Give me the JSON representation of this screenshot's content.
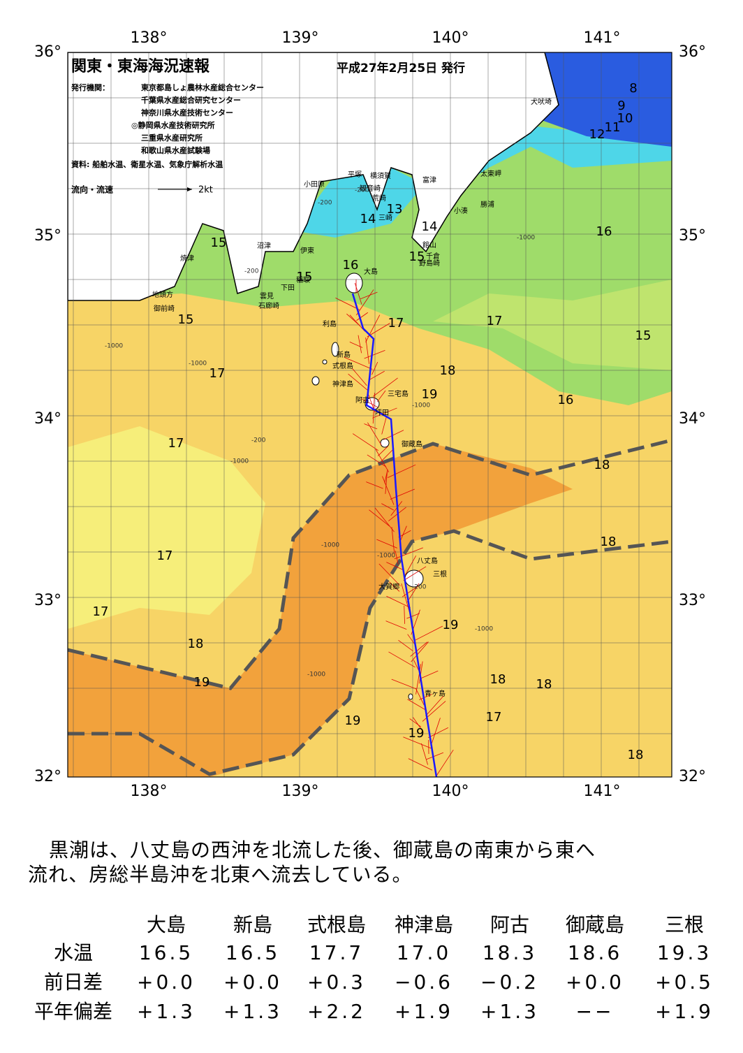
{
  "map": {
    "title": "関東・東海海況速報",
    "issue_date": "平成27年2月25日 発行",
    "issuer_label": "発行機関：",
    "issuers": [
      "東京都島しょ農林水産総合センター",
      "千葉県水産総合研究センター",
      "神奈川県水産技術センター",
      "◎静岡県水産技術研究所",
      "三重県水産研究所",
      "和歌山県水産試験場"
    ],
    "source": "資料: 船舶水温、衛星水温、気象庁解析水温",
    "legend": {
      "label": "流向・流速",
      "scale": "2kt"
    },
    "lon_ticks": [
      "138°",
      "139°",
      "140°",
      "141°"
    ],
    "lat_ticks": [
      "36°",
      "35°",
      "34°",
      "33°",
      "32°"
    ],
    "places": [
      "犬吠埼",
      "太東岬",
      "勝浦",
      "小湊",
      "富津",
      "横須賀",
      "観音崎",
      "荒崎",
      "三崎",
      "平塚",
      "小田原",
      "館山",
      "千倉",
      "野島崎",
      "大島",
      "利島",
      "新島",
      "式根島",
      "神津島",
      "三宅島",
      "阿古",
      "坪田",
      "御蔵島",
      "八丈島",
      "三根",
      "大賀郷",
      "青ヶ島",
      "伊東",
      "稲取",
      "下田",
      "沼津",
      "焼津",
      "地頭方",
      "御前崎",
      "雲見",
      "石廊崎"
    ],
    "contour_labels": [
      "8",
      "9",
      "10",
      "11",
      "12",
      "13",
      "14",
      "14",
      "15",
      "15",
      "16",
      "15",
      "16",
      "17",
      "17",
      "15",
      "18",
      "19",
      "17",
      "16",
      "17",
      "18",
      "18",
      "17",
      "17",
      "18",
      "19",
      "19",
      "18",
      "18",
      "17",
      "19",
      "19",
      "18",
      "15"
    ],
    "depth_labels": [
      "-200",
      "-200",
      "-200",
      "-1000",
      "-1000",
      "-1000",
      "-200",
      "-1000",
      "-1000",
      "-1000",
      "-1000",
      "-1000",
      "-200",
      "-1000"
    ]
  },
  "summary": [
    "黒潮は、八丈島の西沖を北流した後、御蔵島の南東から東へ",
    "流れ、房総半島沖を北東へ流去している。"
  ],
  "table": {
    "columns": [
      "大島",
      "新島",
      "式根島",
      "神津島",
      "阿古",
      "御蔵島",
      "三根"
    ],
    "rows": [
      {
        "label": "水温",
        "values": [
          "16.5",
          "16.5",
          "17.7",
          "17.0",
          "18.3",
          "18.6",
          "19.3"
        ]
      },
      {
        "label": "前日差",
        "values": [
          "+0.0",
          "+0.0",
          "+0.3",
          "−0.6",
          "−0.2",
          "+0.0",
          "+0.5"
        ]
      },
      {
        "label": "平年偏差",
        "values": [
          "+1.3",
          "+1.3",
          "+2.2",
          "+1.9",
          "+1.3",
          "−−",
          "+1.9"
        ]
      }
    ]
  }
}
